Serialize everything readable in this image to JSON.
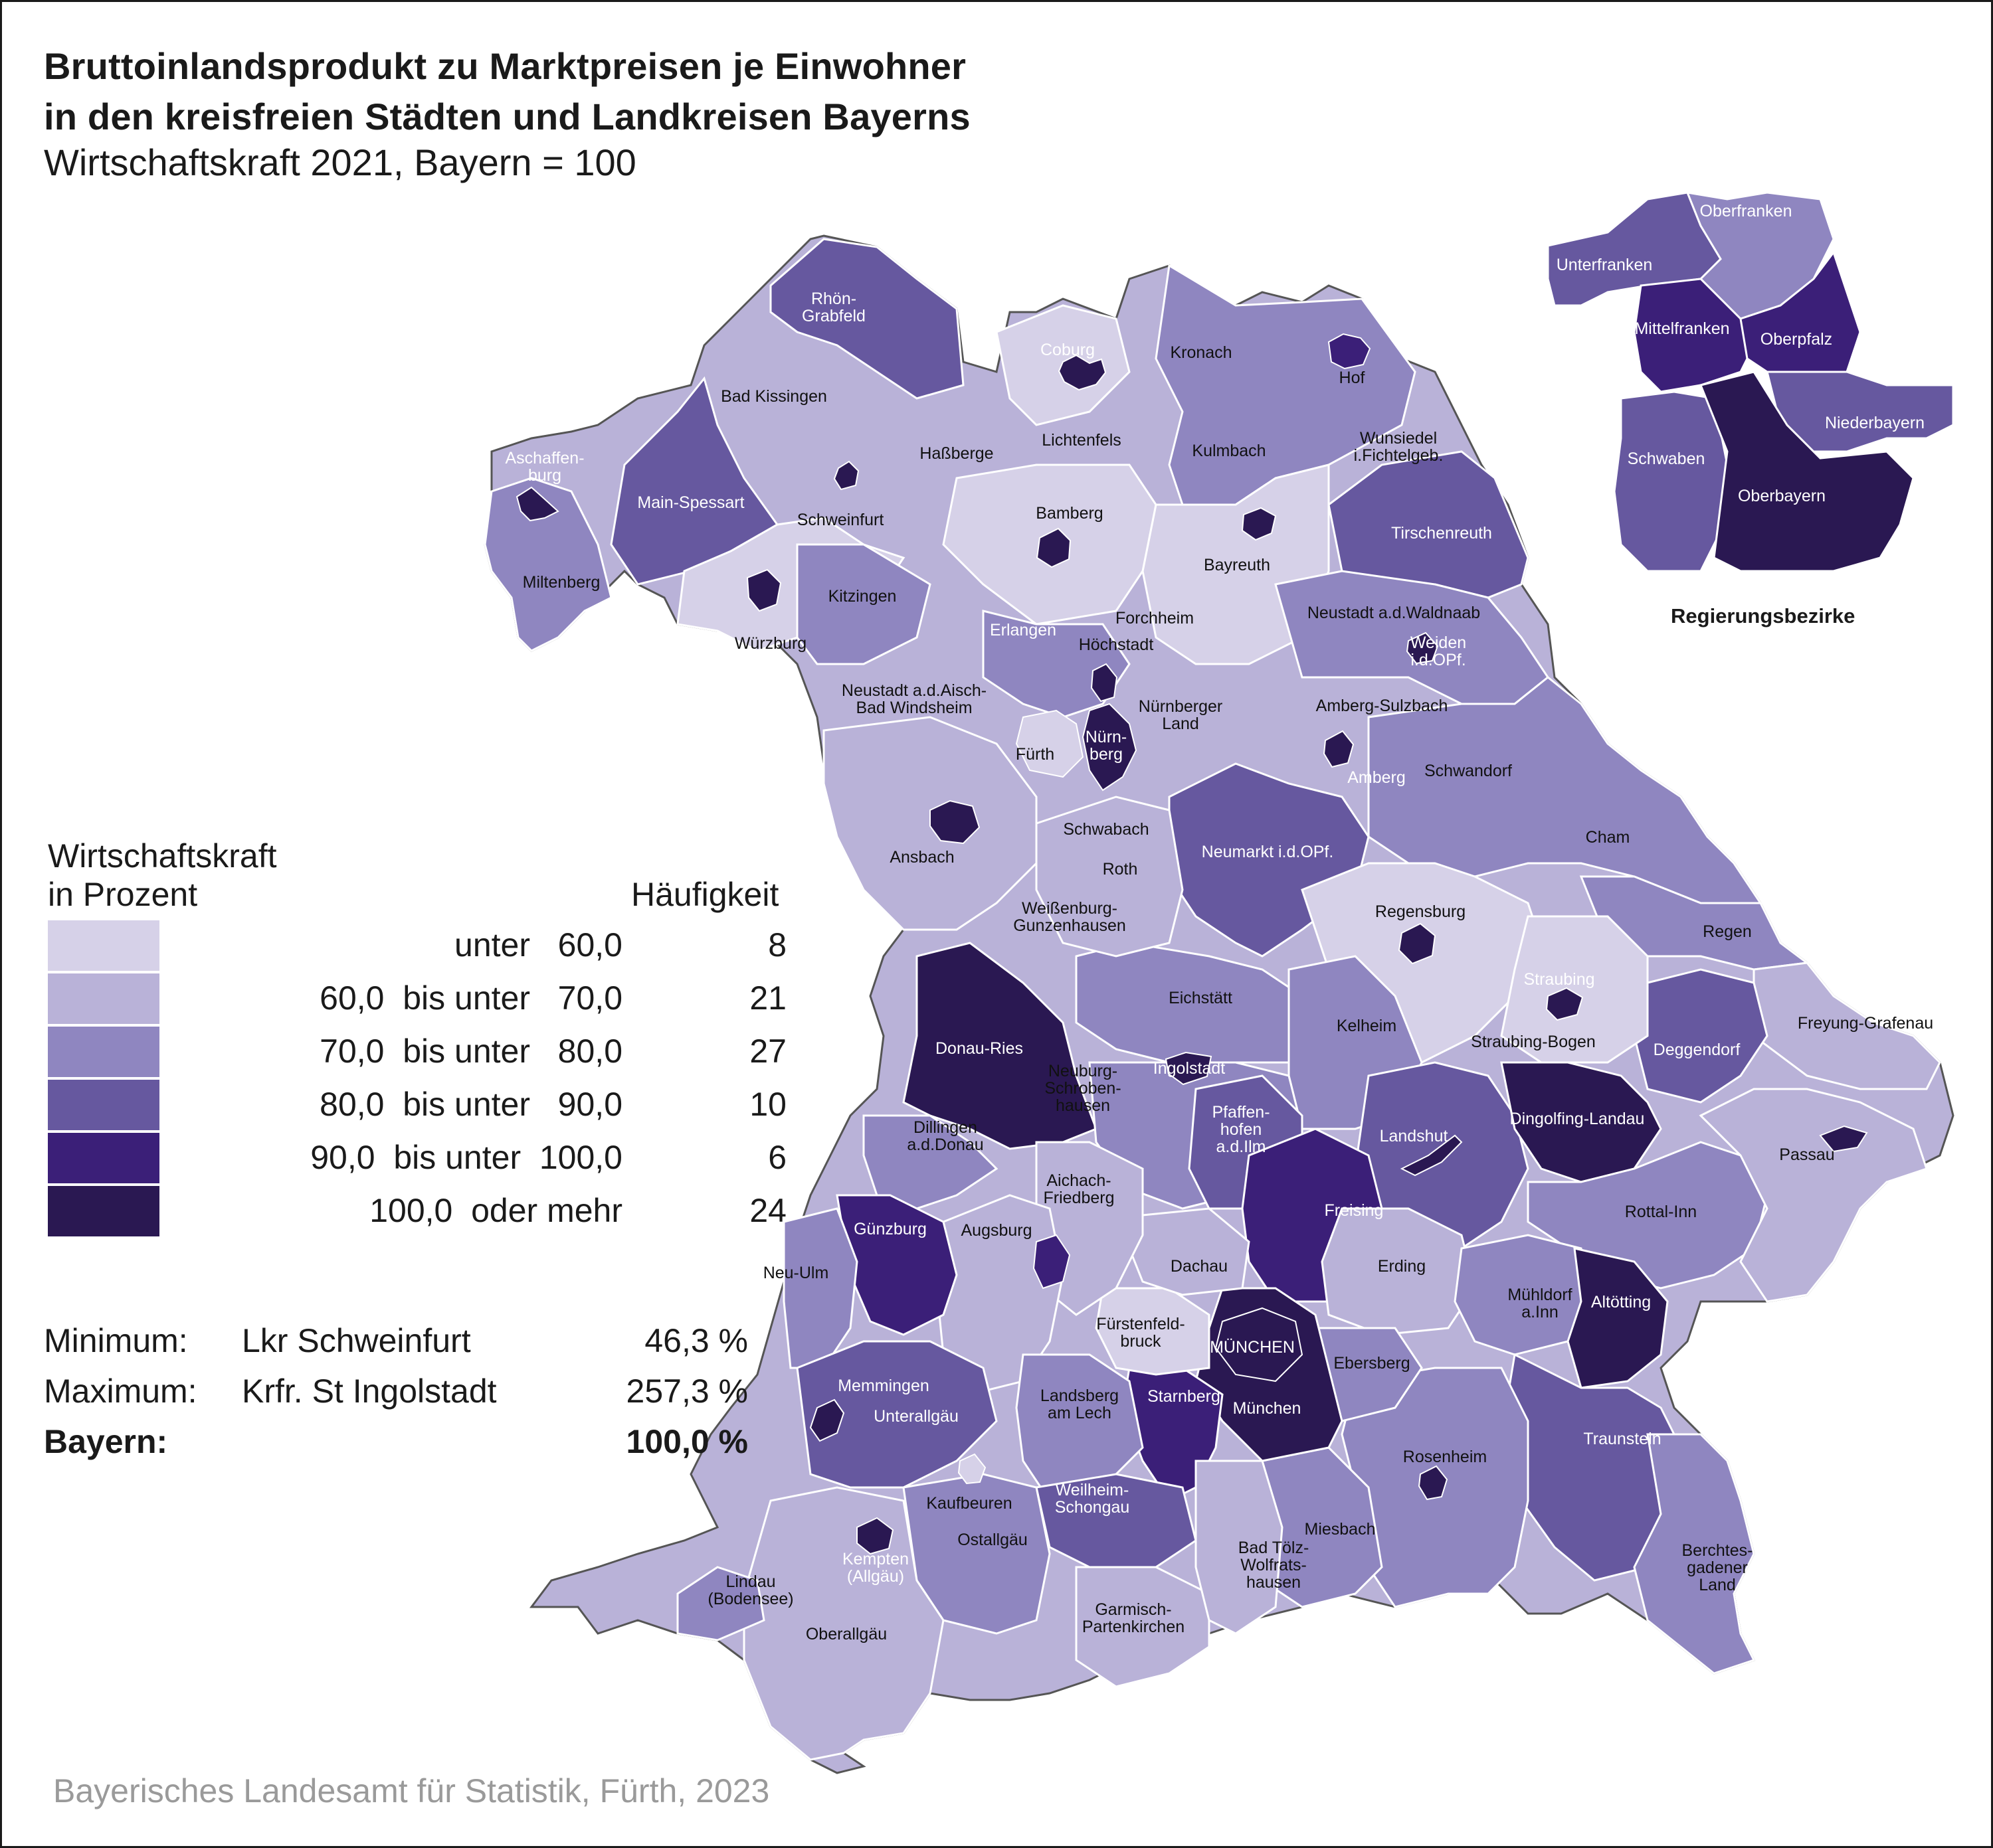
{
  "title_line1": "Bruttoinlandsprodukt zu Marktpreisen je Einwohner",
  "title_line2": "in den kreisfreien Städten und Landkreisen Bayerns",
  "subtitle": "Wirtschaftskraft 2021, Bayern = 100",
  "legend": {
    "title_line1": "Wirtschaftskraft",
    "title_line2": "in Prozent",
    "frequency_header": "Häufigkeit",
    "classes": [
      {
        "range": "unter   60,0",
        "count": "8",
        "color": "#d6d1e8"
      },
      {
        "range": "60,0  bis unter   70,0",
        "count": "21",
        "color": "#b9b2d8"
      },
      {
        "range": "70,0  bis unter   80,0",
        "count": "27",
        "color": "#8f86c0"
      },
      {
        "range": "80,0  bis unter   90,0",
        "count": "10",
        "color": "#66589f"
      },
      {
        "range": "90,0  bis unter  100,0",
        "count": "6",
        "color": "#3b1f78"
      },
      {
        "range": "100,0  oder mehr",
        "count": "24",
        "color": "#2a1852"
      }
    ]
  },
  "stats": {
    "minimum": {
      "label": "Minimum:",
      "name": "Lkr Schweinfurt",
      "value": "46,3 %"
    },
    "maximum": {
      "label": "Maximum:",
      "name": "Krfr. St Ingolstadt",
      "value": "257,3 %"
    },
    "bayern": {
      "label": "Bayern:",
      "value": "100,0 %"
    }
  },
  "inset": {
    "caption": "Regierungsbezirke",
    "regions": [
      {
        "name": "Unterfranken",
        "class": 4
      },
      {
        "name": "Oberfranken",
        "class": 3
      },
      {
        "name": "Mittelfranken",
        "class": 5
      },
      {
        "name": "Oberpfalz",
        "class": 5
      },
      {
        "name": "Niederbayern",
        "class": 4
      },
      {
        "name": "Schwaben",
        "class": 4
      },
      {
        "name": "Oberbayern",
        "class": 6
      }
    ]
  },
  "districts": [
    {
      "name": "Rhön-\nGrabfeld",
      "class": 4
    },
    {
      "name": "Bad Kissingen",
      "class": 2
    },
    {
      "name": "Coburg",
      "class": 6
    },
    {
      "name": "Kronach",
      "class": 2
    },
    {
      "name": "Hof",
      "class": 3
    },
    {
      "name": "Aschaffen-\nburg",
      "class": 6
    },
    {
      "name": "Main-Spessart",
      "class": 4
    },
    {
      "name": "Haßberge",
      "class": 2
    },
    {
      "name": "Lichtenfels",
      "class": 3
    },
    {
      "name": "Kulmbach",
      "class": 3
    },
    {
      "name": "Wunsiedel\ni.Fichtelgeb.",
      "class": 3
    },
    {
      "name": "Schweinfurt",
      "class": 1
    },
    {
      "name": "Bamberg",
      "class": 1
    },
    {
      "name": "Bayreuth",
      "class": 1
    },
    {
      "name": "Tirschenreuth",
      "class": 4
    },
    {
      "name": "Miltenberg",
      "class": 3
    },
    {
      "name": "Kitzingen",
      "class": 3
    },
    {
      "name": "Würzburg",
      "class": 1
    },
    {
      "name": "Erlangen",
      "class": 6
    },
    {
      "name": "Forchheim",
      "class": 1
    },
    {
      "name": "Höchstadt",
      "class": 3
    },
    {
      "name": "Neustadt a.d.Waldnaab",
      "class": 3
    },
    {
      "name": "Weiden\ni.d.OPf.",
      "class": 6
    },
    {
      "name": "Neustadt a.d.Aisch-\nBad Windsheim",
      "class": 2
    },
    {
      "name": "Nürnberger\nLand",
      "class": 2
    },
    {
      "name": "Amberg-Sulzbach",
      "class": 2
    },
    {
      "name": "Fürth",
      "class": 1
    },
    {
      "name": "Nürn-\nberg",
      "class": 6
    },
    {
      "name": "Amberg",
      "class": 6
    },
    {
      "name": "Schwandorf",
      "class": 3
    },
    {
      "name": "Ansbach",
      "class": 2
    },
    {
      "name": "Schwabach",
      "class": 2
    },
    {
      "name": "Neumarkt i.d.OPf.",
      "class": 4
    },
    {
      "name": "Cham",
      "class": 3
    },
    {
      "name": "Roth",
      "class": 2
    },
    {
      "name": "Regensburg",
      "class": 1
    },
    {
      "name": "Weißenburg-\nGunzenhausen",
      "class": 2
    },
    {
      "name": "Regen",
      "class": 3
    },
    {
      "name": "Straubing",
      "class": 6
    },
    {
      "name": "Eichstätt",
      "class": 3
    },
    {
      "name": "Kelheim",
      "class": 3
    },
    {
      "name": "Donau-Ries",
      "class": 6
    },
    {
      "name": "Ingolstadt",
      "class": 6
    },
    {
      "name": "Straubing-Bogen",
      "class": 2
    },
    {
      "name": "Deggendorf",
      "class": 4
    },
    {
      "name": "Freyung-Grafenau",
      "class": 2
    },
    {
      "name": "Neuburg-\nSchroben-\nhausen",
      "class": 3
    },
    {
      "name": "Pfaffen-\nhofen\na.d.Ilm",
      "class": 4
    },
    {
      "name": "Landshut",
      "class": 4
    },
    {
      "name": "Dingolfing-Landau",
      "class": 6
    },
    {
      "name": "Dillingen\na.d.Donau",
      "class": 3
    },
    {
      "name": "Passau",
      "class": 2
    },
    {
      "name": "Aichach-\nFriedberg",
      "class": 2
    },
    {
      "name": "Freising",
      "class": 5
    },
    {
      "name": "Günzburg",
      "class": 5
    },
    {
      "name": "Augsburg",
      "class": 2
    },
    {
      "name": "Rottal-Inn",
      "class": 3
    },
    {
      "name": "Erding",
      "class": 2
    },
    {
      "name": "Dachau",
      "class": 2
    },
    {
      "name": "Neu-Ulm",
      "class": 3
    },
    {
      "name": "Altötting",
      "class": 6
    },
    {
      "name": "Mühldorf\na.Inn",
      "class": 3
    },
    {
      "name": "Fürstenfeld-\nbruck",
      "class": 1
    },
    {
      "name": "MÜNCHEN",
      "class": 6
    },
    {
      "name": "Ebersberg",
      "class": 3
    },
    {
      "name": "Memmingen",
      "class": 6
    },
    {
      "name": "München",
      "class": 6
    },
    {
      "name": "Starnberg",
      "class": 5
    },
    {
      "name": "Unterallgäu",
      "class": 4
    },
    {
      "name": "Landsberg\nam Lech",
      "class": 3
    },
    {
      "name": "Traunstein",
      "class": 4
    },
    {
      "name": "Rosenheim",
      "class": 3
    },
    {
      "name": "Kaufbeuren",
      "class": 2
    },
    {
      "name": "Weilheim-\nSchongau",
      "class": 4
    },
    {
      "name": "Miesbach",
      "class": 3
    },
    {
      "name": "Ostallgäu",
      "class": 3
    },
    {
      "name": "Kempten\n(Allgäu)",
      "class": 6
    },
    {
      "name": "Bad Tölz-\nWolfrats-\nhausen",
      "class": 2
    },
    {
      "name": "Berchtes-\ngadener\nLand",
      "class": 3
    },
    {
      "name": "Lindau\n(Bodensee)",
      "class": 3
    },
    {
      "name": "Garmisch-\nPartenkirchen",
      "class": 2
    },
    {
      "name": "Oberallgäu",
      "class": 2
    }
  ],
  "source": "Bayerisches Landesamt für Statistik, Fürth, 2023"
}
